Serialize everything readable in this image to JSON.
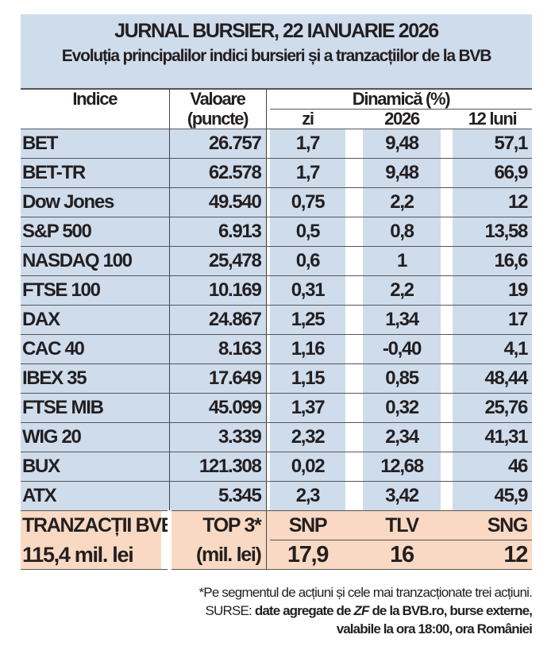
{
  "title": "JURNAL BURSIER, 22 IANUARIE 2026",
  "subtitle": "Evoluția principalilor indici bursieri și a tranzacțiilor de la BVB",
  "headers": {
    "indice": "Indice",
    "valoare": "Valoare",
    "valoare_unit": "(puncte)",
    "dinamica": "Dinamică (%)",
    "zi": "zi",
    "an": "2026",
    "luni": "12 luni"
  },
  "rows": [
    {
      "name": "BET",
      "value": "26.757",
      "zi": "1,7",
      "an": "9,48",
      "luni": "57,1"
    },
    {
      "name": "BET-TR",
      "value": "62.578",
      "zi": "1,7",
      "an": "9,48",
      "luni": "66,9"
    },
    {
      "name": "Dow Jones",
      "value": "49.540",
      "zi": "0,75",
      "an": "2,2",
      "luni": "12"
    },
    {
      "name": "S&P 500",
      "value": "6.913",
      "zi": "0,5",
      "an": "0,8",
      "luni": "13,58"
    },
    {
      "name": "NASDAQ 100",
      "value": "25,478",
      "zi": "0,6",
      "an": "1",
      "luni": "16,6"
    },
    {
      "name": "FTSE 100",
      "value": "10.169",
      "zi": "0,31",
      "an": "2,2",
      "luni": "19"
    },
    {
      "name": "DAX",
      "value": "24.867",
      "zi": "1,25",
      "an": "1,34",
      "luni": "17"
    },
    {
      "name": "CAC 40",
      "value": "8.163",
      "zi": "1,16",
      "an": "-0,40",
      "luni": "4,1"
    },
    {
      "name": "IBEX 35",
      "value": "17.649",
      "zi": "1,15",
      "an": "0,85",
      "luni": "48,44"
    },
    {
      "name": "FTSE MIB",
      "value": "45.099",
      "zi": "1,37",
      "an": "0,32",
      "luni": "25,76"
    },
    {
      "name": "WIG 20",
      "value": "3.339",
      "zi": "2,32",
      "an": "2,34",
      "luni": "41,31"
    },
    {
      "name": "BUX",
      "value": "121.308",
      "zi": "0,02",
      "an": "12,68",
      "luni": "46"
    },
    {
      "name": "ATX",
      "value": "5.345",
      "zi": "2,3",
      "an": "3,42",
      "luni": "45,9"
    }
  ],
  "bvb": {
    "label": "TRANZACȚII BVB",
    "total": "115,4 mil. lei",
    "top_label": "TOP 3*",
    "top_unit": "(mil. lei)",
    "tickers": [
      "SNP",
      "TLV",
      "SNG"
    ],
    "values": [
      "17,9",
      "16",
      "12"
    ]
  },
  "footnote": {
    "note": "*Pe segmentul de acțiuni și cele mai tranzacționate trei acțiuni.",
    "sources_label": "SURSE:",
    "sources_a": "date agregate de",
    "sources_zf": "ZF",
    "sources_b": "de la BVB.ro, burse externe,",
    "sources_c": "valabile la ora 18:00, ora României"
  },
  "colors": {
    "blue": "#cfdcec",
    "peach": "#f9d9c3"
  }
}
